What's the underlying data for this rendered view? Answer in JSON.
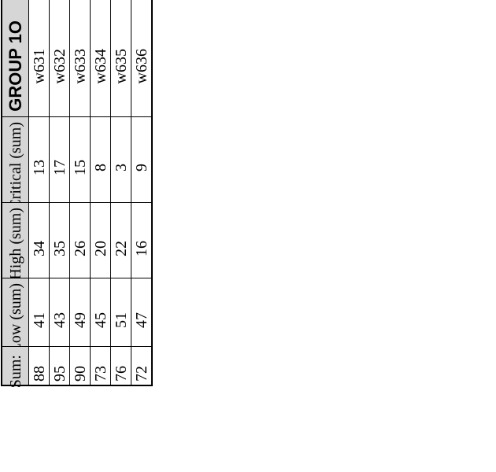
{
  "table": {
    "title": "GROUP 1O",
    "column_headers": [
      "w631",
      "w632",
      "w633",
      "w634",
      "w635",
      "w636"
    ],
    "rows": [
      {
        "label": "Critical (sum)",
        "values": [
          13,
          17,
          15,
          8,
          3,
          9
        ]
      },
      {
        "label": "High (sum)",
        "values": [
          34,
          35,
          26,
          20,
          22,
          16
        ]
      },
      {
        "label": "Low (sum)",
        "values": [
          41,
          43,
          49,
          45,
          51,
          47
        ]
      },
      {
        "label": "Sum:",
        "values": [
          88,
          95,
          90,
          73,
          76,
          72
        ]
      }
    ],
    "colors": {
      "header_background": "#d6d6d6",
      "cell_background": "#ffffff",
      "border": "#000000",
      "text": "#000000"
    },
    "text_orientation": "rotated-90-ccw"
  },
  "chart_data": {
    "type": "table",
    "title": "GROUP 1O",
    "columns": [
      "w631",
      "w632",
      "w633",
      "w634",
      "w635",
      "w636"
    ],
    "row_labels": [
      "Critical (sum)",
      "High (sum)",
      "Low (sum)",
      "Sum:"
    ],
    "values": [
      [
        13,
        17,
        15,
        8,
        3,
        9
      ],
      [
        34,
        35,
        26,
        20,
        22,
        16
      ],
      [
        41,
        43,
        49,
        45,
        51,
        47
      ],
      [
        88,
        95,
        90,
        73,
        76,
        72
      ]
    ]
  }
}
